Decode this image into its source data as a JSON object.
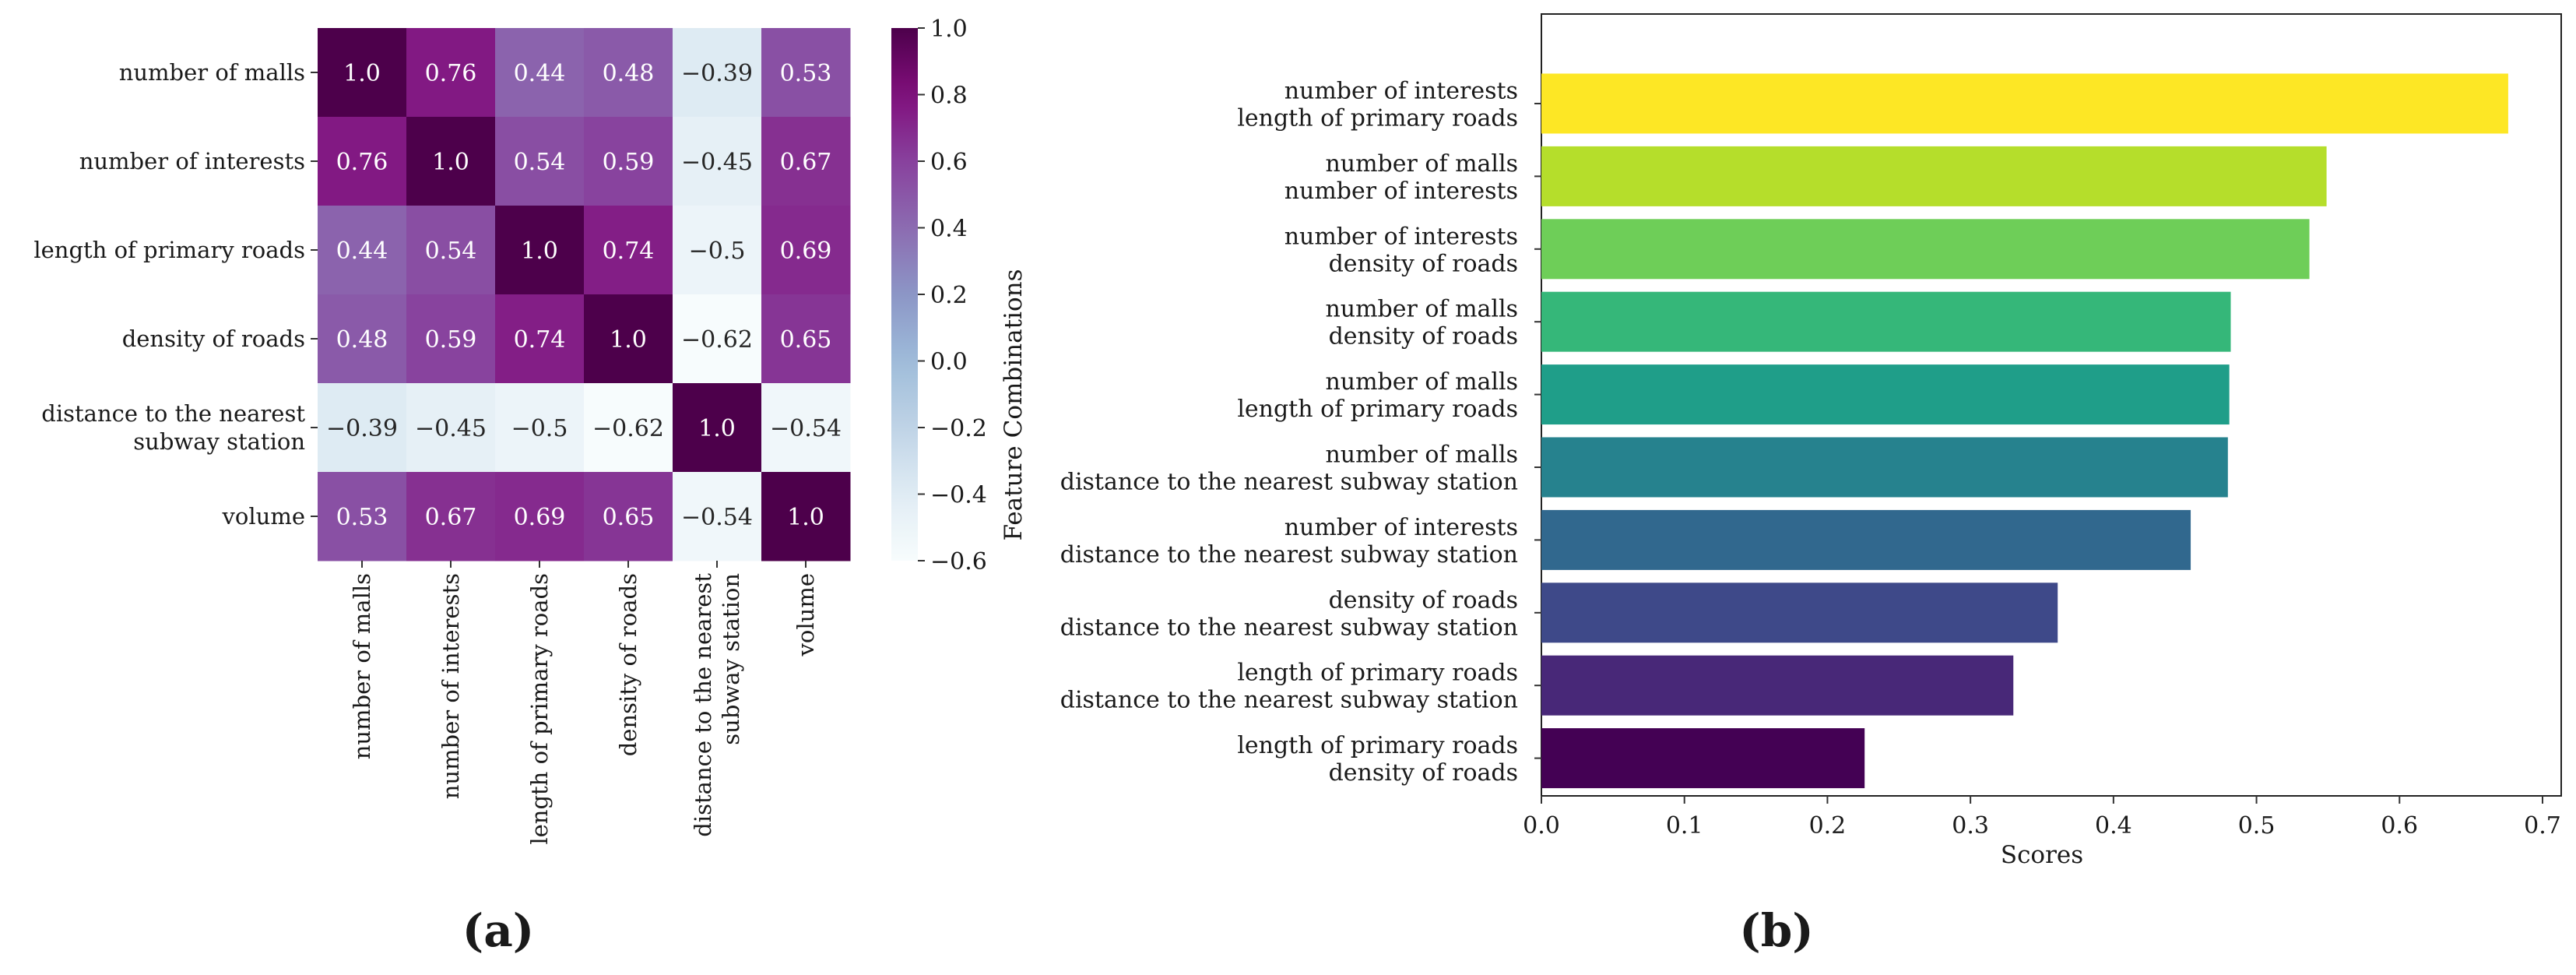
{
  "panels": {
    "a_label": "(a)",
    "b_label": "(b)"
  },
  "chart_data": [
    {
      "type": "heatmap",
      "id": "a",
      "title": "",
      "rows": [
        "number of malls",
        "number of interests",
        "length of primary roads",
        "density of roads",
        "distance to the nearest\nsubway station",
        "volume"
      ],
      "columns": [
        "number of malls",
        "number of interests",
        "length of primary roads",
        "density of roads",
        "distance to the nearest\nsubway station",
        "volume"
      ],
      "values": [
        [
          1.0,
          0.76,
          0.44,
          0.48,
          -0.39,
          0.53
        ],
        [
          0.76,
          1.0,
          0.54,
          0.59,
          -0.45,
          0.67
        ],
        [
          0.44,
          0.54,
          1.0,
          0.74,
          -0.5,
          0.69
        ],
        [
          0.48,
          0.59,
          0.74,
          1.0,
          -0.62,
          0.65
        ],
        [
          -0.39,
          -0.45,
          -0.5,
          -0.62,
          1.0,
          -0.54
        ],
        [
          0.53,
          0.67,
          0.69,
          0.65,
          -0.54,
          1.0
        ]
      ],
      "cell_labels": [
        [
          "1.0",
          "0.76",
          "0.44",
          "0.48",
          "−0.39",
          "0.53"
        ],
        [
          "0.76",
          "1.0",
          "0.54",
          "0.59",
          "−0.45",
          "0.67"
        ],
        [
          "0.44",
          "0.54",
          "1.0",
          "0.74",
          "−0.5",
          "0.69"
        ],
        [
          "0.48",
          "0.59",
          "0.74",
          "1.0",
          "−0.62",
          "0.65"
        ],
        [
          "−0.39",
          "−0.45",
          "−0.5",
          "−0.62",
          "1.0",
          "−0.54"
        ],
        [
          "0.53",
          "0.67",
          "0.69",
          "0.65",
          "−0.54",
          "1.0"
        ]
      ],
      "vmin": -0.6,
      "vmax": 1.0,
      "colormap": "BuPu",
      "colorbar_ticks": [
        1.0,
        0.8,
        0.6,
        0.4,
        0.2,
        0.0,
        -0.2,
        -0.4,
        -0.6
      ],
      "colorbar_tick_labels": [
        "1.0",
        "0.8",
        "0.6",
        "0.4",
        "0.2",
        "0.0",
        "−0.2",
        "−0.4",
        "−0.6"
      ]
    },
    {
      "type": "bar",
      "id": "b",
      "orientation": "horizontal",
      "title": "",
      "xlabel": "Scores",
      "ylabel": "Feature Combinations",
      "xlim": [
        0.0,
        0.7
      ],
      "xticks": [
        0.0,
        0.1,
        0.2,
        0.3,
        0.4,
        0.5,
        0.6,
        0.7
      ],
      "xtick_labels": [
        "0.0",
        "0.1",
        "0.2",
        "0.3",
        "0.4",
        "0.5",
        "0.6",
        "0.7"
      ],
      "categories": [
        "number of interests\nlength of primary roads",
        "number of malls\nnumber of interests",
        "number of interests\ndensity of roads",
        "number of malls\ndensity of roads",
        "number of malls\nlength of primary roads",
        "number of malls\ndistance to the nearest subway station",
        "number of interests\ndistance to the nearest subway station",
        "density of roads\ndistance to the nearest subway station",
        "length of primary roads\ndistance to the nearest subway station",
        "length of primary roads\ndensity of roads"
      ],
      "values": [
        0.676,
        0.549,
        0.537,
        0.482,
        0.481,
        0.48,
        0.454,
        0.361,
        0.33,
        0.226
      ],
      "colors": [
        "#fde725",
        "#b5de2b",
        "#6ece58",
        "#35b779",
        "#1f9e89",
        "#26828e",
        "#31688e",
        "#3e4989",
        "#482878",
        "#440154"
      ]
    }
  ]
}
